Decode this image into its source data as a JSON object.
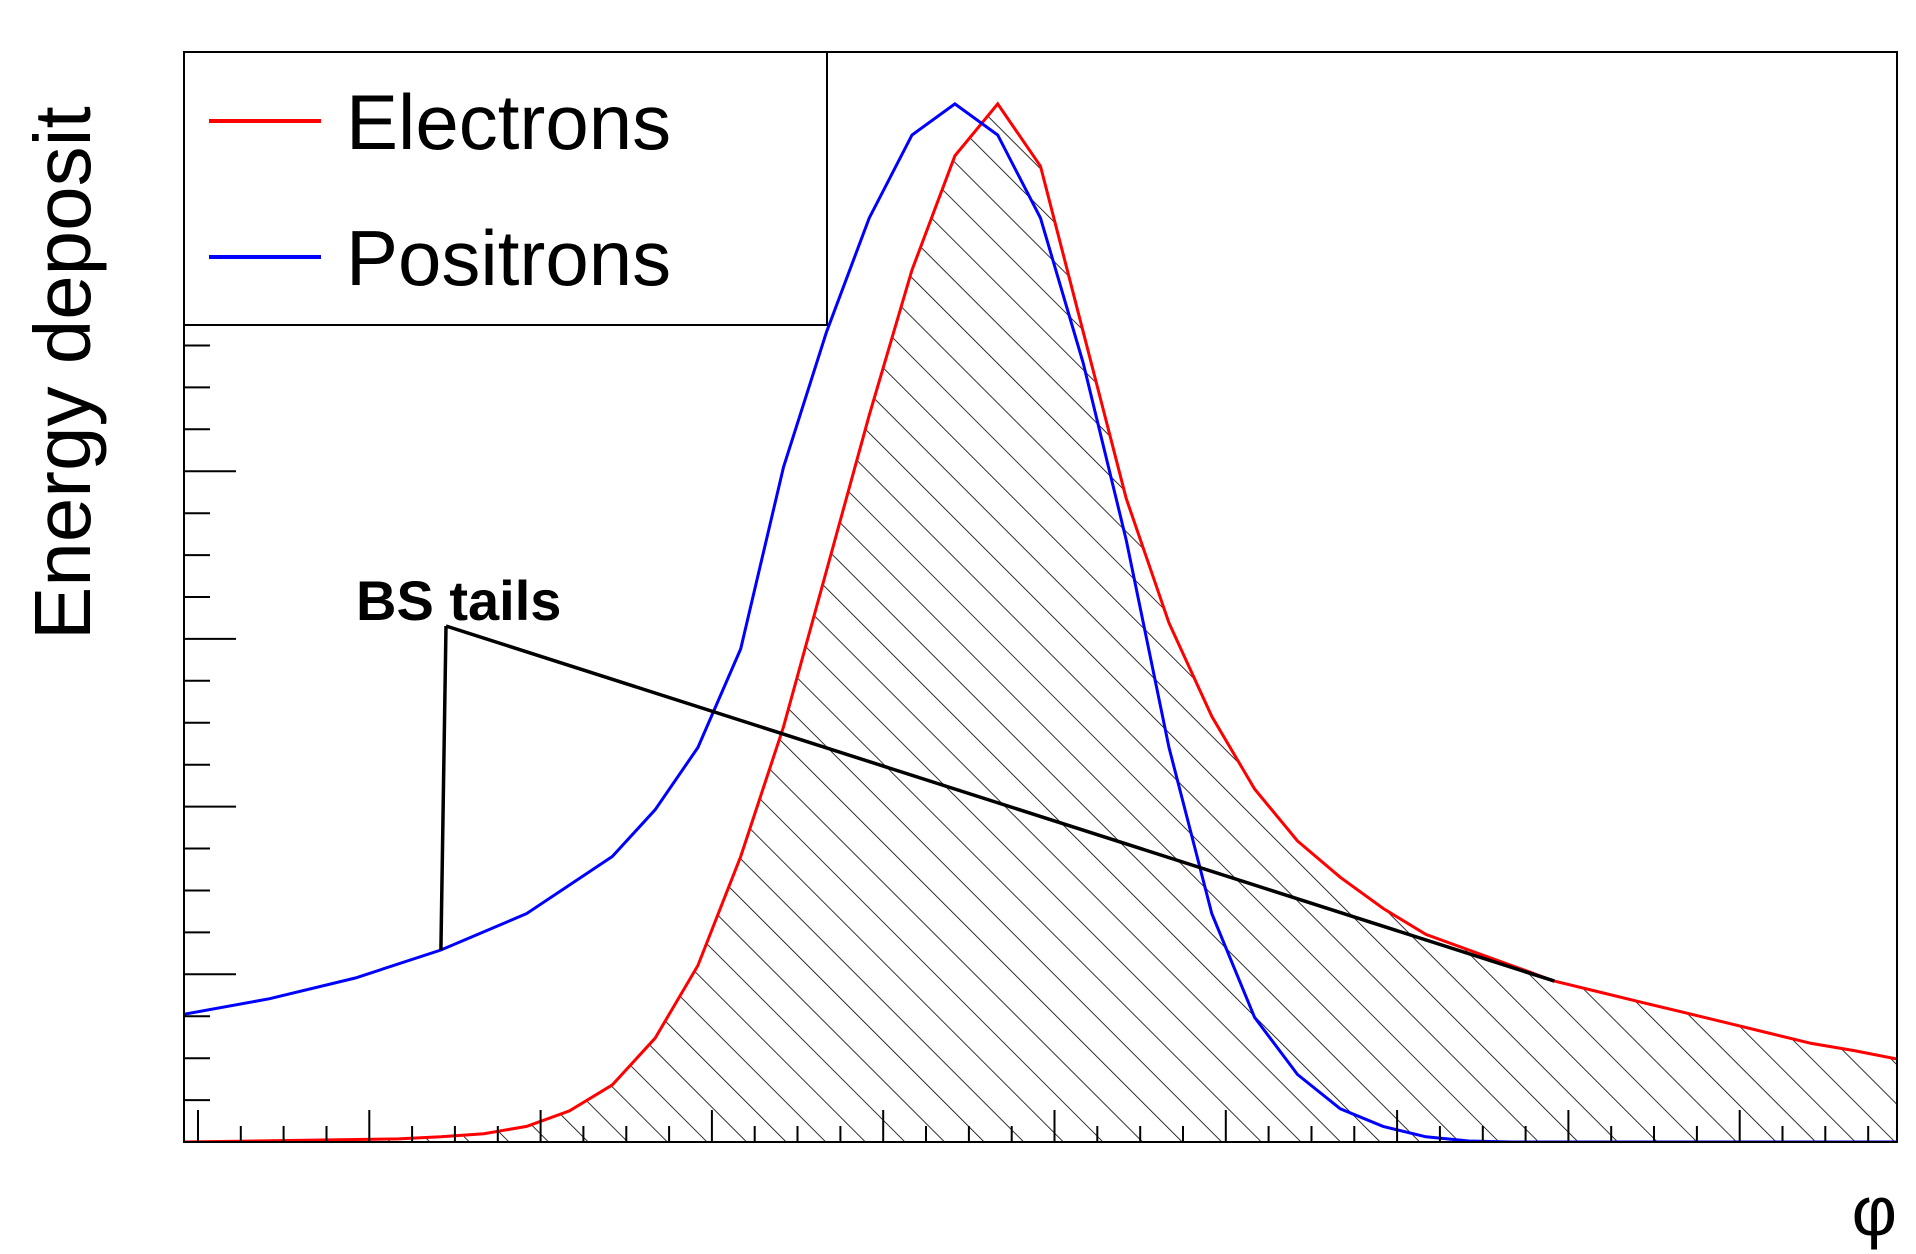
{
  "chart_data": {
    "type": "line",
    "title": "",
    "xlabel": "φ",
    "ylabel": "Energy deposit",
    "xlim": [
      0,
      200
    ],
    "ylim": [
      0,
      105
    ],
    "grid": false,
    "legend_position": "top-left",
    "annotation": "BS tails",
    "series": [
      {
        "name": "Electrons",
        "color": "#ff0000",
        "x": [
          0,
          25,
          30,
          35,
          40,
          45,
          50,
          55,
          60,
          65,
          70,
          75,
          80,
          85,
          90,
          95,
          100,
          105,
          110,
          115,
          120,
          125,
          130,
          135,
          140,
          145,
          150,
          155,
          160,
          165,
          170,
          175,
          180,
          185,
          190,
          195,
          200
        ],
        "values": [
          0,
          0.3,
          0.5,
          0.8,
          1.5,
          3,
          5.5,
          10,
          17,
          27.5,
          40,
          55,
          70,
          84,
          95,
          100,
          94,
          78,
          62,
          50,
          41,
          34,
          29,
          25.5,
          22.5,
          20,
          18.5,
          17,
          15.5,
          14.5,
          13.5,
          12.5,
          11.5,
          10.5,
          9.5,
          8.8,
          8
        ],
        "hatched": true
      },
      {
        "name": "Positrons",
        "color": "#0000ff",
        "x": [
          0,
          10,
          20,
          30,
          40,
          50,
          55,
          60,
          65,
          70,
          75,
          80,
          85,
          90,
          95,
          100,
          105,
          110,
          115,
          120,
          125,
          130,
          135,
          140,
          145,
          150,
          155,
          160,
          170,
          180,
          190,
          200
        ],
        "values": [
          12.3,
          13.8,
          15.8,
          18.5,
          22,
          27.5,
          32,
          38,
          47.5,
          65,
          78,
          89,
          97,
          100,
          97,
          89,
          75,
          58,
          38,
          22,
          12,
          6.5,
          3.2,
          1.5,
          0.5,
          0.1,
          0,
          0,
          0,
          0,
          0,
          0
        ]
      }
    ]
  }
}
